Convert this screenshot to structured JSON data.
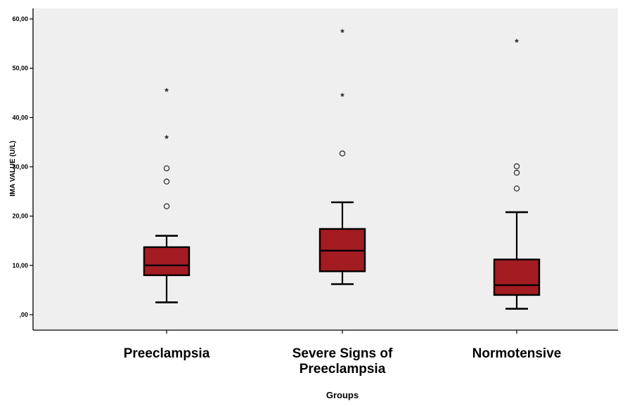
{
  "chart_data": {
    "type": "box",
    "xlabel": "Groups",
    "ylabel": "IMA VALUE (U/L)",
    "ylim": [
      -2,
      62
    ],
    "yticks": [
      0,
      10,
      20,
      30,
      40,
      50,
      60
    ],
    "ytick_labels": [
      ",00",
      "10,00",
      "20,00",
      "30,00",
      "40,00",
      "50,00",
      "60,00"
    ],
    "grid": false,
    "box_color": "#a31c21",
    "plot_background": "#efefef",
    "groups": [
      {
        "label_lines": [
          "Preeclampsia"
        ],
        "whisker_low": 2.5,
        "q1": 8,
        "median": 10,
        "q3": 13.7,
        "whisker_high": 16,
        "outliers": [
          22,
          27,
          29.7
        ],
        "extremes": [
          35.8,
          45.3
        ]
      },
      {
        "label_lines": [
          "Severe Signs of",
          "Preeclampsia"
        ],
        "whisker_low": 6.2,
        "q1": 8.8,
        "median": 13,
        "q3": 17.4,
        "whisker_high": 22.8,
        "outliers": [
          32.7
        ],
        "extremes": [
          44.3,
          57.3
        ]
      },
      {
        "label_lines": [
          "Normotensive"
        ],
        "whisker_low": 1.2,
        "q1": 4,
        "median": 6,
        "q3": 11.2,
        "whisker_high": 20.8,
        "outliers": [
          25.6,
          28.8,
          30.1
        ],
        "extremes": [
          55.3
        ]
      }
    ]
  }
}
